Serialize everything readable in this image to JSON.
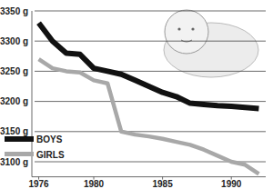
{
  "chart_data": {
    "type": "line",
    "x": [
      1976,
      1977,
      1978,
      1979,
      1980,
      1981,
      1982,
      1983,
      1984,
      1985,
      1986,
      1987,
      1988,
      1989,
      1990,
      1991,
      1992
    ],
    "series": [
      {
        "name": "BOYS",
        "color": "#111111",
        "values": [
          3330,
          3300,
          3280,
          3278,
          3255,
          3250,
          3245,
          3235,
          3225,
          3215,
          3208,
          3197,
          3195,
          3193,
          3192,
          3190,
          3188
        ]
      },
      {
        "name": "GIRLS",
        "color": "#a8a8a8",
        "values": [
          3270,
          3255,
          3250,
          3248,
          3235,
          3230,
          3150,
          3145,
          3142,
          3138,
          3133,
          3128,
          3120,
          3110,
          3100,
          3095,
          3080
        ]
      }
    ],
    "xlim": [
      1975.5,
      1992.5
    ],
    "xticks": [
      1976,
      1980,
      1985,
      1990
    ],
    "ylim": [
      3075,
      3350
    ],
    "yticks": [
      {
        "value": 3100,
        "label": "3100 g"
      },
      {
        "value": 3150,
        "label": "3150 g"
      },
      {
        "value": 3200,
        "label": "3200 g"
      },
      {
        "value": 3250,
        "label": "3250 g"
      },
      {
        "value": 3300,
        "label": "3300 g"
      },
      {
        "value": 3350,
        "label": "3350 g"
      }
    ],
    "grid": true,
    "legend": "lower left"
  }
}
